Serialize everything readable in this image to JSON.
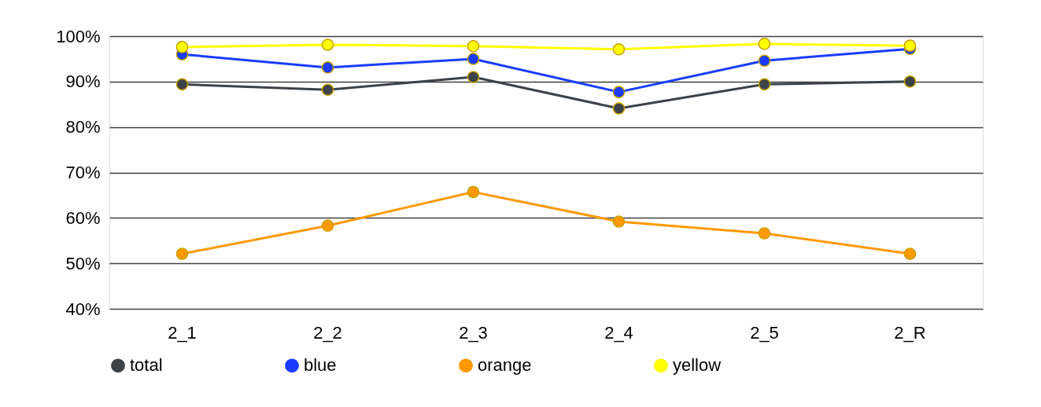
{
  "chart_data": {
    "type": "line",
    "categories": [
      "2_1",
      "2_2",
      "2_3",
      "2_4",
      "2_5",
      "2_R"
    ],
    "series": [
      {
        "name": "total",
        "color": "#3c4248",
        "values": [
          89.4,
          88.2,
          91.0,
          84.1,
          89.4,
          90.0
        ]
      },
      {
        "name": "blue",
        "color": "#1a3cff",
        "values": [
          96.0,
          93.1,
          95.0,
          87.7,
          94.6,
          97.2
        ]
      },
      {
        "name": "orange",
        "color": "#ff9900",
        "values": [
          52.1,
          58.3,
          65.7,
          59.2,
          56.6,
          52.1
        ]
      },
      {
        "name": "yellow",
        "color": "#ffff00",
        "values": [
          97.6,
          98.1,
          97.8,
          97.1,
          98.3,
          97.9
        ]
      }
    ],
    "ylim": [
      40,
      100
    ],
    "yticks": [
      {
        "value": 40,
        "label": "40%"
      },
      {
        "value": 50,
        "label": "50%"
      },
      {
        "value": 60,
        "label": "60%"
      },
      {
        "value": 70,
        "label": "70%"
      },
      {
        "value": 80,
        "label": "80%"
      },
      {
        "value": 90,
        "label": "90%"
      },
      {
        "value": 100,
        "label": "100%"
      }
    ],
    "grid": "y",
    "legend": "bottom",
    "marker": "circle",
    "line_style": "solid"
  }
}
